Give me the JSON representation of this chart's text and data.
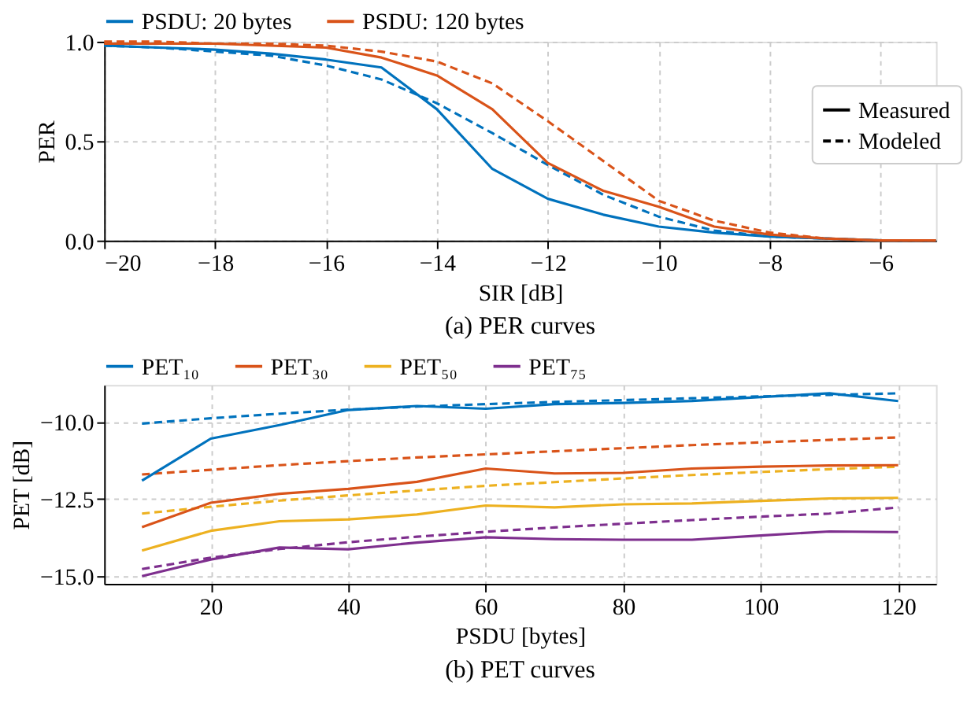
{
  "chart_data": [
    {
      "type": "line",
      "title": "(a) PER curves",
      "xlabel": "SIR [dB]",
      "ylabel": "PER",
      "x": [
        -20,
        -19,
        -18,
        -17,
        -16,
        -15,
        -14,
        -13,
        -12,
        -11,
        -10,
        -9,
        -8,
        -7,
        -6,
        -5
      ],
      "series": [
        {
          "name": "PSDU: 20 bytes",
          "color": "#0072bd",
          "line_style": "solid",
          "values": [
            0.98,
            0.97,
            0.96,
            0.94,
            0.91,
            0.87,
            0.66,
            0.36,
            0.21,
            0.13,
            0.07,
            0.04,
            0.02,
            0.01,
            0.0,
            0.0
          ]
        },
        {
          "name": "PSDU: 120 bytes",
          "color": "#d95319",
          "line_style": "solid",
          "values": [
            0.99,
            0.99,
            0.99,
            0.98,
            0.97,
            0.92,
            0.83,
            0.66,
            0.39,
            0.25,
            0.17,
            0.07,
            0.03,
            0.01,
            0.0,
            0.0
          ]
        },
        {
          "color": "#0072bd",
          "line_style": "dashed",
          "values": [
            0.98,
            0.97,
            0.95,
            0.93,
            0.88,
            0.81,
            0.69,
            0.54,
            0.38,
            0.23,
            0.12,
            0.05,
            0.02,
            0.01,
            0.0,
            0.0
          ]
        },
        {
          "color": "#d95319",
          "line_style": "dashed",
          "values": [
            1.0,
            1.0,
            0.99,
            0.99,
            0.98,
            0.95,
            0.9,
            0.79,
            0.6,
            0.4,
            0.2,
            0.1,
            0.04,
            0.01,
            0.0,
            0.0
          ]
        }
      ],
      "xlim": [
        -20,
        -5
      ],
      "xticks": [
        -20,
        -18,
        -16,
        -14,
        -12,
        -10,
        -8,
        -6
      ],
      "ylim": [
        0,
        1.0
      ],
      "yticks": [
        {
          "value": 0,
          "label": "0.0"
        },
        {
          "value": 0.5,
          "label": "0.5"
        },
        {
          "value": 1,
          "label": "1.0"
        }
      ],
      "annotations": [
        "Measured",
        "Modeled"
      ],
      "grid": true,
      "legend": "top"
    },
    {
      "type": "line",
      "title": "(b) PET curves",
      "xlabel": "PSDU [bytes]",
      "ylabel": "PET [dB]",
      "x": [
        10,
        20,
        30,
        40,
        50,
        60,
        70,
        80,
        90,
        100,
        110,
        120
      ],
      "series": [
        {
          "name": "PET₁₀",
          "color": "#0072bd",
          "line_style": "solid",
          "values": [
            -11.9,
            -10.54,
            -10.1,
            -9.61,
            -9.48,
            -9.57,
            -9.42,
            -9.38,
            -9.32,
            -9.19,
            -9.07,
            -9.32
          ]
        },
        {
          "name": "PET₃₀",
          "color": "#d95319",
          "line_style": "solid",
          "values": [
            -13.41,
            -12.62,
            -12.33,
            -12.17,
            -11.94,
            -11.51,
            -11.67,
            -11.65,
            -11.51,
            -11.45,
            -11.41,
            -11.4
          ]
        },
        {
          "name": "PET₅₀",
          "color": "#edb120",
          "line_style": "solid",
          "values": [
            -14.17,
            -13.53,
            -13.22,
            -13.16,
            -13.0,
            -12.71,
            -12.77,
            -12.67,
            -12.64,
            -12.56,
            -12.48,
            -12.46
          ]
        },
        {
          "name": "PET₇₅",
          "color": "#7e2f8e",
          "line_style": "solid",
          "values": [
            -15.0,
            -14.46,
            -14.07,
            -14.13,
            -13.91,
            -13.74,
            -13.8,
            -13.82,
            -13.82,
            -13.68,
            -13.55,
            -13.57
          ]
        },
        {
          "color": "#0072bd",
          "line_style": "dashed",
          "values": [
            -10.05,
            -9.88,
            -9.73,
            -9.6,
            -9.5,
            -9.42,
            -9.35,
            -9.29,
            -9.23,
            -9.17,
            -9.12,
            -9.07
          ]
        },
        {
          "color": "#d95319",
          "line_style": "dashed",
          "values": [
            -11.7,
            -11.55,
            -11.4,
            -11.27,
            -11.15,
            -11.05,
            -10.95,
            -10.85,
            -10.75,
            -10.66,
            -10.58,
            -10.5
          ]
        },
        {
          "color": "#edb120",
          "line_style": "dashed",
          "values": [
            -12.97,
            -12.75,
            -12.55,
            -12.38,
            -12.22,
            -12.07,
            -11.95,
            -11.83,
            -11.72,
            -11.62,
            -11.53,
            -11.45
          ]
        },
        {
          "color": "#7e2f8e",
          "line_style": "dashed",
          "values": [
            -14.77,
            -14.4,
            -14.12,
            -13.9,
            -13.72,
            -13.56,
            -13.42,
            -13.3,
            -13.18,
            -13.07,
            -12.97,
            -12.77
          ]
        }
      ],
      "xlim": [
        4.5,
        125.5
      ],
      "xticks": [
        20,
        40,
        60,
        80,
        100,
        120
      ],
      "ylim": [
        -15.25,
        -8.8
      ],
      "yticks": [
        {
          "value": -10,
          "label": "−10.0"
        },
        {
          "value": -12.5,
          "label": "−12.5"
        },
        {
          "value": -15,
          "label": "−15.0"
        }
      ],
      "grid": true,
      "legend": "top"
    }
  ]
}
